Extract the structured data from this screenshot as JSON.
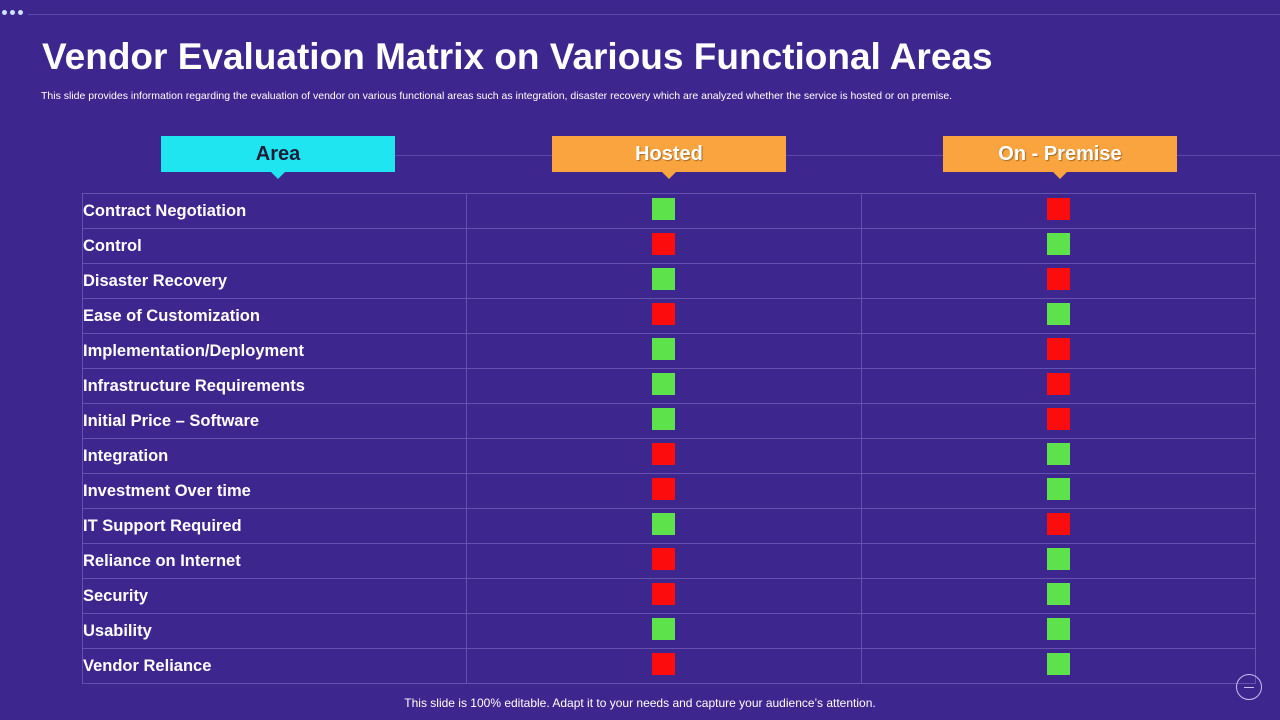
{
  "slide": {
    "title": "Vendor Evaluation Matrix on Various Functional Areas",
    "subtitle": "This slide provides information regarding the evaluation of vendor on various functional areas such as integration, disaster recovery which are analyzed whether the service is hosted or on premise.",
    "footer": "This slide is 100% editable. Adapt it to your needs and capture your audience’s attention."
  },
  "columns": {
    "area": "Area",
    "hosted": "Hosted",
    "on_premise": "On - Premise"
  },
  "colors": {
    "background": "#3e268f",
    "area_header": "#1fe5f0",
    "option_header": "#f9a43e",
    "positive": "#5ee24c",
    "negative": "#fc0c0c"
  },
  "rows": [
    {
      "area": "Contract Negotiation",
      "hosted": "green",
      "on_premise": "red"
    },
    {
      "area": "Control",
      "hosted": "red",
      "on_premise": "green"
    },
    {
      "area": "Disaster Recovery",
      "hosted": "green",
      "on_premise": "red"
    },
    {
      "area": "Ease of Customization",
      "hosted": "red",
      "on_premise": "green"
    },
    {
      "area": "Implementation/Deployment",
      "hosted": "green",
      "on_premise": "red"
    },
    {
      "area": "Infrastructure  Requirements",
      "hosted": "green",
      "on_premise": "red"
    },
    {
      "area": "Initial Price – Software",
      "hosted": "green",
      "on_premise": "red"
    },
    {
      "area": "Integration",
      "hosted": "red",
      "on_premise": "green"
    },
    {
      "area": "Investment Over time",
      "hosted": "red",
      "on_premise": "green"
    },
    {
      "area": "IT Support Required",
      "hosted": "green",
      "on_premise": "red"
    },
    {
      "area": "Reliance on Internet",
      "hosted": "red",
      "on_premise": "green"
    },
    {
      "area": "Security",
      "hosted": "red",
      "on_premise": "green"
    },
    {
      "area": "Usability",
      "hosted": "green",
      "on_premise": "green"
    },
    {
      "area": "Vendor Reliance",
      "hosted": "red",
      "on_premise": "green"
    }
  ]
}
